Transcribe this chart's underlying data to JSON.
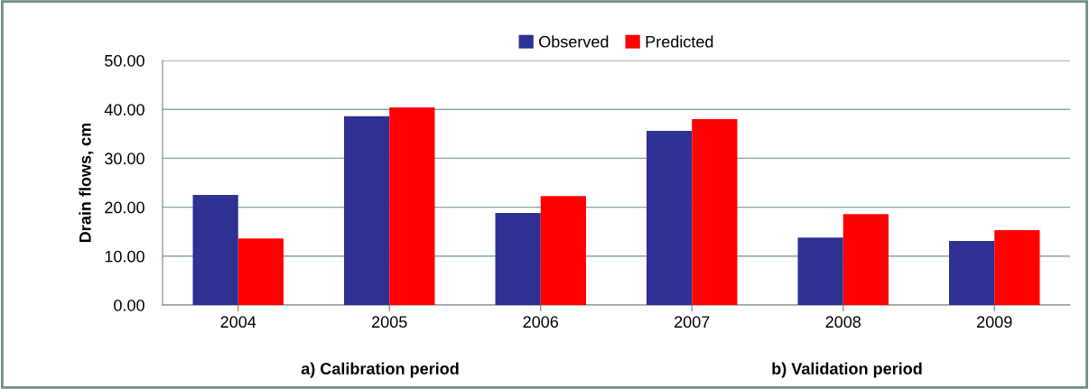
{
  "chart_data": {
    "type": "bar",
    "ylabel": "Drain flows, cm",
    "categories": [
      "2004",
      "2005",
      "2006",
      "2007",
      "2008",
      "2009"
    ],
    "series": [
      {
        "name": "Observed",
        "color": "#2e3192",
        "values": [
          22.5,
          38.6,
          18.8,
          35.6,
          13.8,
          13.1
        ]
      },
      {
        "name": "Predicted",
        "color": "#ff0000",
        "values": [
          13.6,
          40.4,
          22.3,
          38.0,
          18.6,
          15.3
        ]
      }
    ],
    "ylim": [
      0,
      50
    ],
    "yticks": [
      {
        "value": 0,
        "label": "0.00"
      },
      {
        "value": 10,
        "label": "10.00"
      },
      {
        "value": 20,
        "label": "20.00"
      },
      {
        "value": 30,
        "label": "30.00"
      },
      {
        "value": 40,
        "label": "40.00"
      },
      {
        "value": 50,
        "label": "50.00"
      }
    ],
    "grid": "y",
    "legend": "top",
    "annotations": [
      "a) Calibration period",
      "b) Validation period"
    ]
  }
}
